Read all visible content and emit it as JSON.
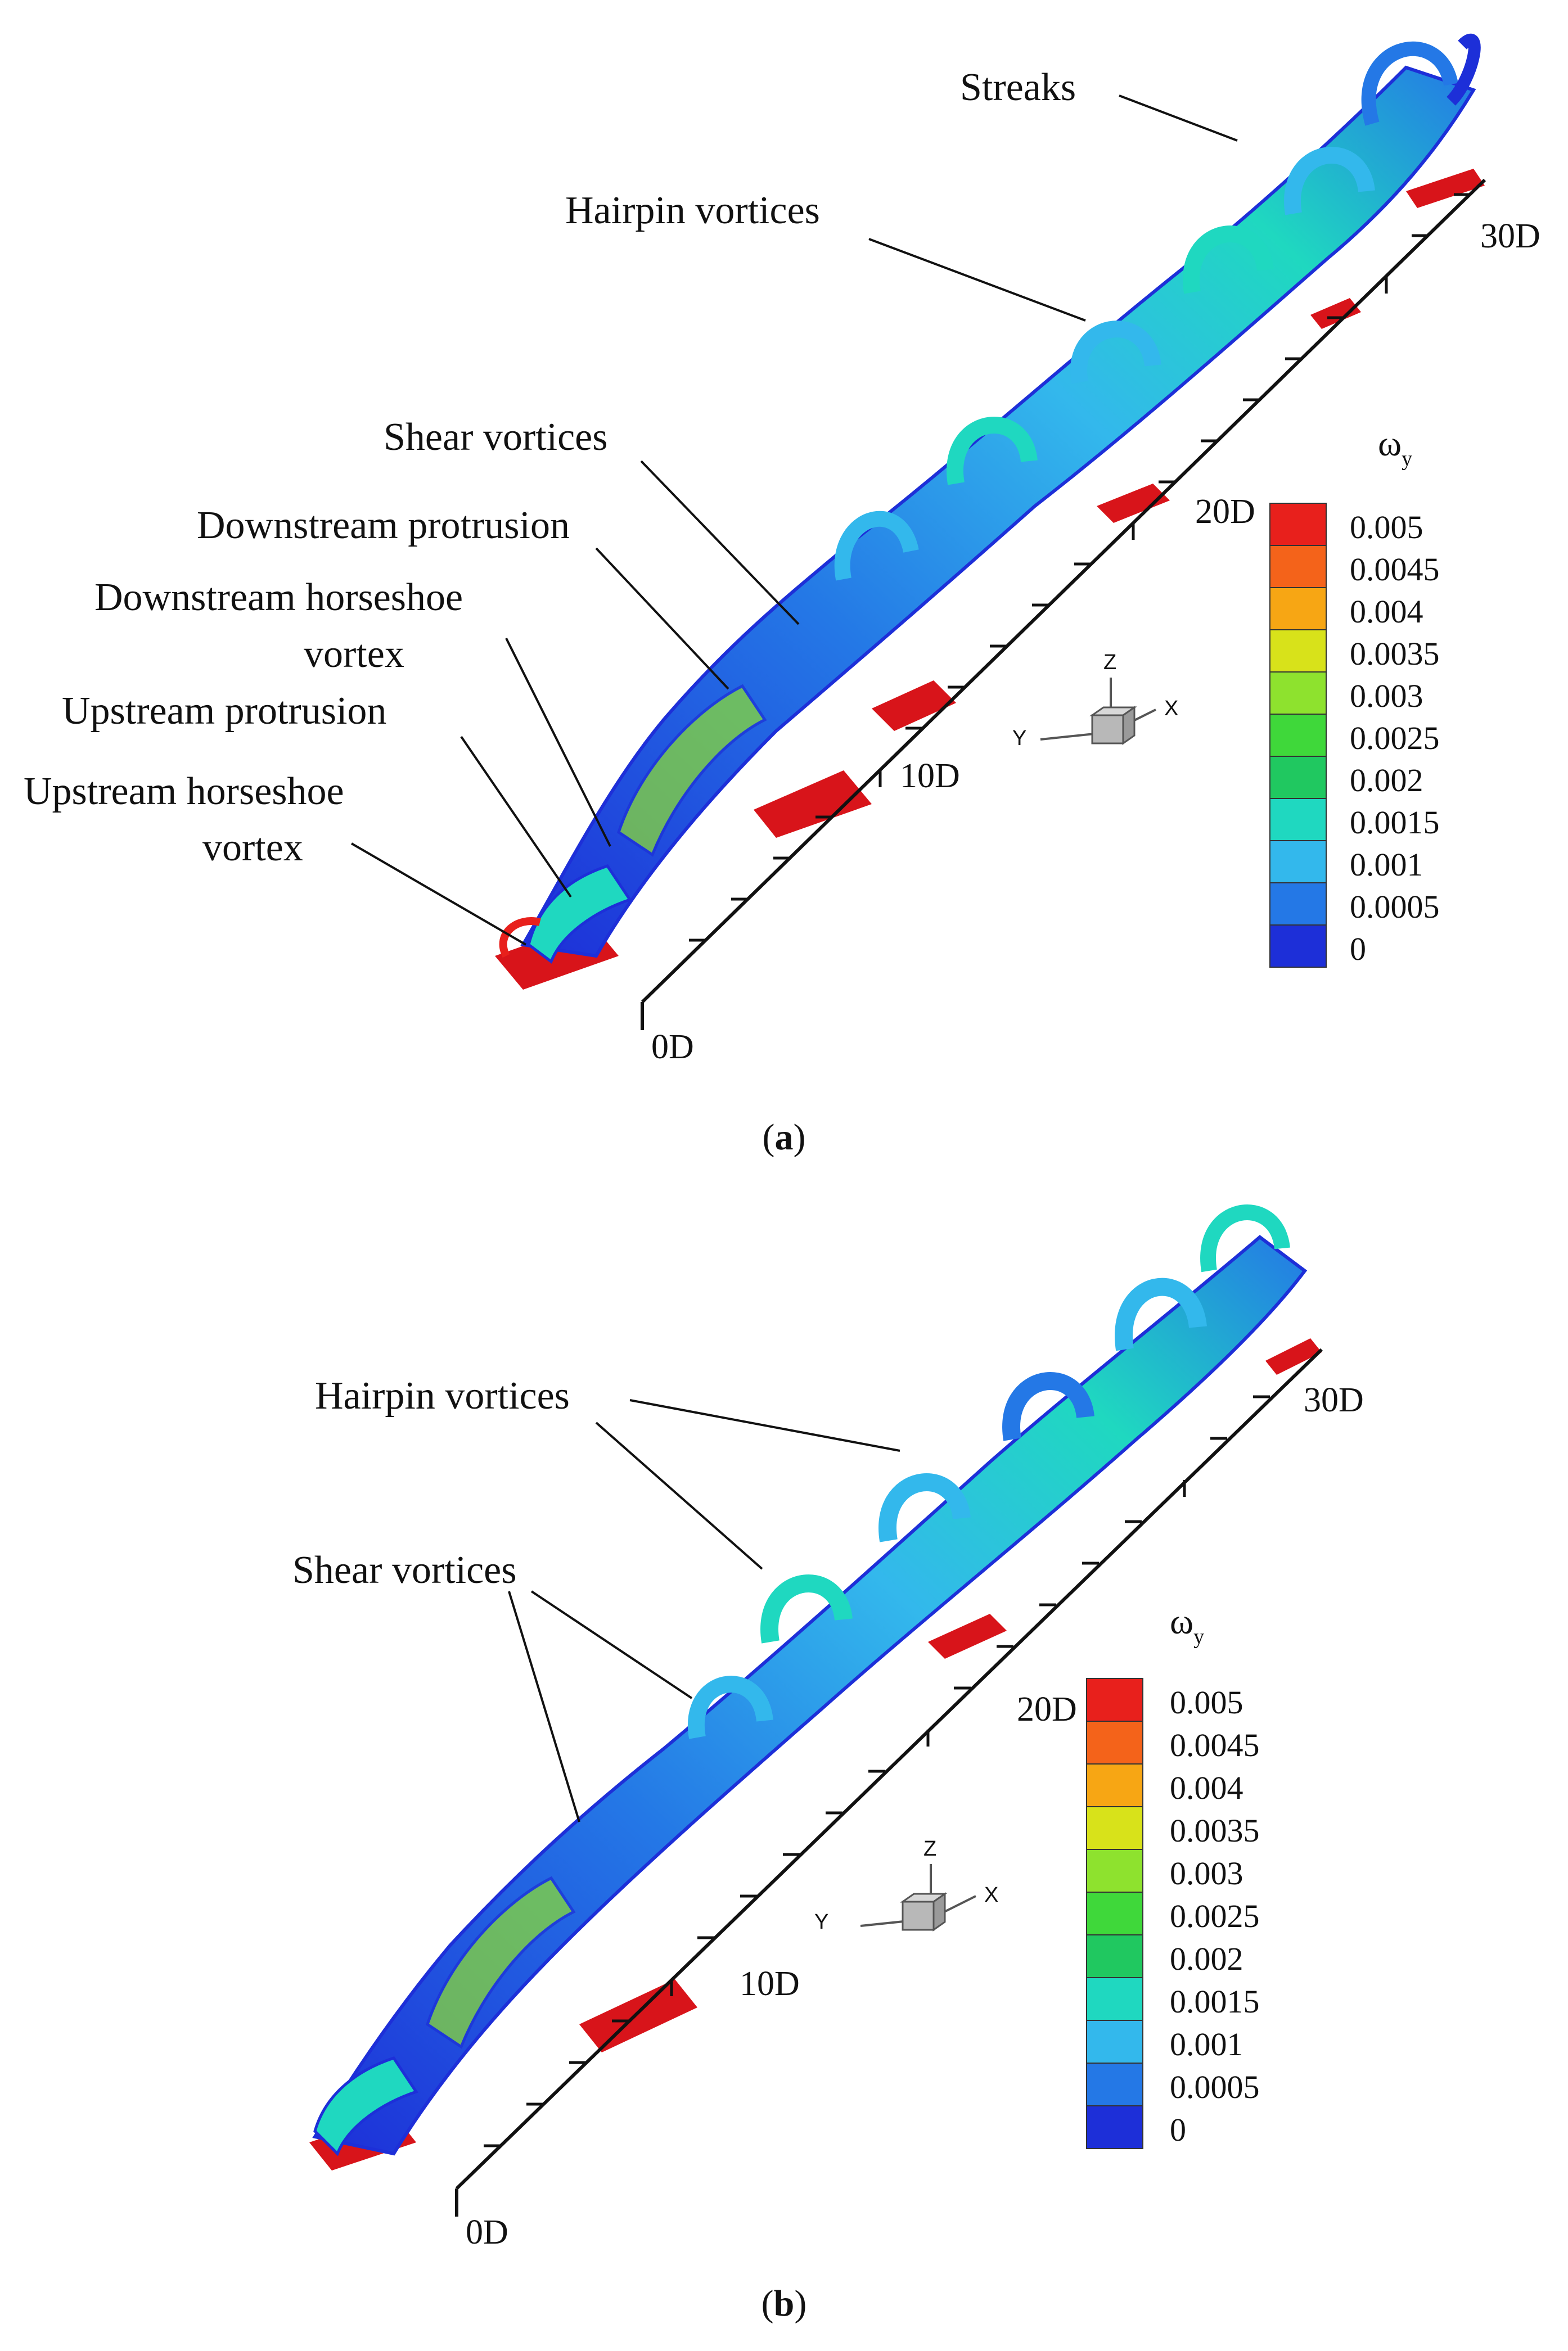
{
  "panels": [
    {
      "id": "a",
      "caption": {
        "open": "(",
        "letter": "a",
        "close": ")"
      },
      "annotations": [
        "Streaks",
        "Hairpin vortices",
        "Shear vortices",
        "Downstream protrusion",
        "Downstream horseshoe",
        "vortex",
        "Upstream protrusion",
        "Upstream horseshoe",
        "vortex"
      ],
      "ticks": [
        "0D",
        "10D",
        "20D",
        "30D"
      ],
      "legend": {
        "title_main": "ω",
        "title_sub": "y",
        "levels": [
          "0.005",
          "0.0045",
          "0.004",
          "0.0035",
          "0.003",
          "0.0025",
          "0.002",
          "0.0015",
          "0.001",
          "0.0005",
          "0"
        ],
        "colors": [
          "#e8201c",
          "#f4631a",
          "#f7a614",
          "#d8e21a",
          "#8ee22e",
          "#3fd83a",
          "#20c860",
          "#1fd8c0",
          "#33b8ec",
          "#2478e6",
          "#1d2fd8"
        ]
      },
      "triad": {
        "z": "Z",
        "y": "Y",
        "x": "X"
      }
    },
    {
      "id": "b",
      "caption": {
        "open": "(",
        "letter": "b",
        "close": ")"
      },
      "annotations": [
        "Hairpin vortices",
        "Shear vortices"
      ],
      "ticks": [
        "0D",
        "10D",
        "20D",
        "30D"
      ],
      "legend": {
        "title_main": "ω",
        "title_sub": "y",
        "levels": [
          "0.005",
          "0.0045",
          "0.004",
          "0.0035",
          "0.003",
          "0.0025",
          "0.002",
          "0.0015",
          "0.001",
          "0.0005",
          "0"
        ],
        "colors": [
          "#e8201c",
          "#f4631a",
          "#f7a614",
          "#d8e21a",
          "#8ee22e",
          "#3fd83a",
          "#20c860",
          "#1fd8c0",
          "#33b8ec",
          "#2478e6",
          "#1d2fd8"
        ]
      },
      "triad": {
        "z": "Z",
        "y": "Y",
        "x": "X"
      }
    }
  ]
}
